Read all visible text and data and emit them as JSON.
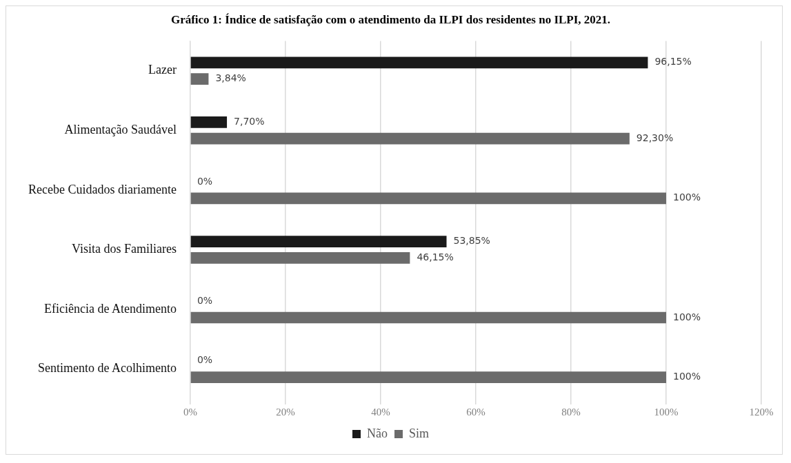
{
  "chart_data": {
    "type": "bar",
    "orientation": "horizontal",
    "title": "Gráfico 1: Índice de satisfação com o atendimento da ILPI dos residentes no ILPI, 2021.",
    "categories": [
      "Lazer",
      "Alimentação Saudável",
      "Recebe Cuidados diariamente",
      "Visita dos Familiares",
      "Eficiência de Atendimento",
      "Sentimento de Acolhimento"
    ],
    "series": [
      {
        "name": "Não",
        "color": "#1a1a1a",
        "values": [
          96.15,
          7.7,
          0,
          53.85,
          0,
          0
        ],
        "value_labels": [
          "96,15%",
          "7,70%",
          "0%",
          "53,85%",
          "0%",
          "0%"
        ]
      },
      {
        "name": "Sim",
        "color": "#6b6b6b",
        "values": [
          3.84,
          92.3,
          100,
          46.15,
          100,
          100
        ],
        "value_labels": [
          "3,84%",
          "92,30%",
          "100%",
          "46,15%",
          "100%",
          "100%"
        ]
      }
    ],
    "xlim": [
      0,
      120
    ],
    "xticks": [
      {
        "value": 0,
        "label": "0%"
      },
      {
        "value": 20,
        "label": "20%"
      },
      {
        "value": 40,
        "label": "40%"
      },
      {
        "value": 60,
        "label": "60%"
      },
      {
        "value": 80,
        "label": "80%"
      },
      {
        "value": 100,
        "label": "100%"
      },
      {
        "value": 120,
        "label": "120%"
      }
    ],
    "grid": "x",
    "legend": "bottom"
  }
}
